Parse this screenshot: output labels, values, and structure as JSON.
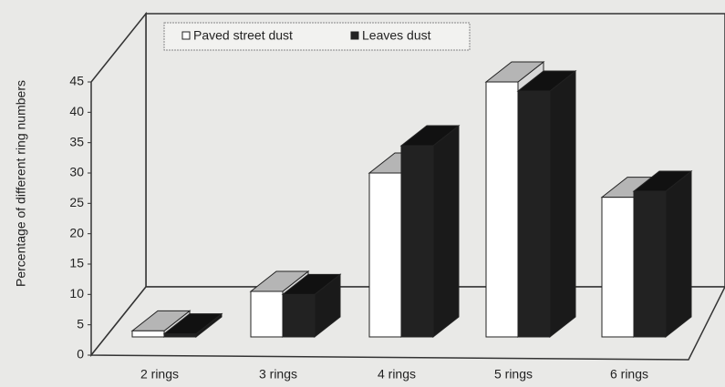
{
  "chart_data": {
    "type": "bar3d",
    "y_label": "Percentage of different ring numbers",
    "categories": [
      "2 rings",
      "3 rings",
      "4 rings",
      "5 rings",
      "6 rings"
    ],
    "series": [
      {
        "name": "Paved street dust",
        "color": "#ffffff",
        "values": [
          1,
          7.5,
          27,
          42,
          23
        ]
      },
      {
        "name": "Leaves dust",
        "color": "#222222",
        "values": [
          0.5,
          7,
          31.5,
          40.5,
          24
        ]
      }
    ],
    "ylim": [
      0,
      45
    ],
    "yticks": [
      0,
      5,
      10,
      15,
      20,
      25,
      30,
      35,
      40,
      45
    ]
  }
}
